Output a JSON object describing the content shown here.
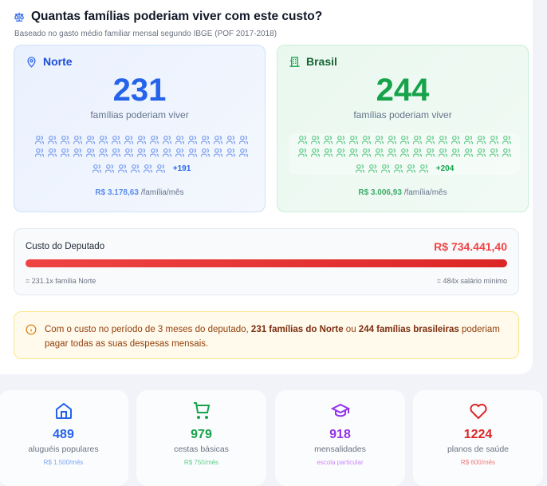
{
  "header": {
    "title": "Quantas famílias poderiam viver com este custo?",
    "subtitle": "Baseado no gasto médio familiar mensal segundo IBGE (POF 2017-2018)",
    "icon": "scale-icon"
  },
  "norte": {
    "region": "Norte",
    "icon": "map-pin-icon",
    "count": "231",
    "label": "famílias poderiam viver",
    "more": "+191",
    "price": "R$ 3.178,63",
    "unit": "/família/mês",
    "color": "#2563eb",
    "icon_color": "#6b93ee"
  },
  "brasil": {
    "region": "Brasil",
    "icon": "building-icon",
    "count": "244",
    "label": "famílias poderiam viver",
    "more": "+204",
    "price": "R$ 3.006,93",
    "unit": "/família/mês",
    "color": "#16a34a",
    "icon_color": "#4cc47a"
  },
  "cost": {
    "label": "Custo do Deputado",
    "value": "R$ 734.441,40",
    "left_note": "= 231.1x família Norte",
    "right_note": "= 484x salário mínimo",
    "bar_color": "#dc2626"
  },
  "note": {
    "icon": "info-icon",
    "t1": "Com o custo no período de 3 meses do deputado, ",
    "b1": "231 famílias do Norte",
    "t2": " ou ",
    "b2": "244 famílias brasileiras",
    "t3": " poderiam pagar todas as suas despesas mensais."
  },
  "stats": [
    {
      "icon": "home-icon",
      "value": "489",
      "label": "aluguéis populares",
      "sub": "R$ 1.500/mês",
      "color": "#2563eb",
      "sub_color": "#7aa5f5"
    },
    {
      "icon": "cart-icon",
      "value": "979",
      "label": "cestas básicas",
      "sub": "R$ 750/mês",
      "color": "#16a34a",
      "sub_color": "#5fd08a"
    },
    {
      "icon": "graduation-cap-icon",
      "value": "918",
      "label": "mensalidades",
      "sub": "escola particular",
      "color": "#9333ea",
      "sub_color": "#c88af5"
    },
    {
      "icon": "heart-icon",
      "value": "1224",
      "label": "planos de saúde",
      "sub": "R$ 600/mês",
      "color": "#dc2626",
      "sub_color": "#f07a7a"
    }
  ]
}
